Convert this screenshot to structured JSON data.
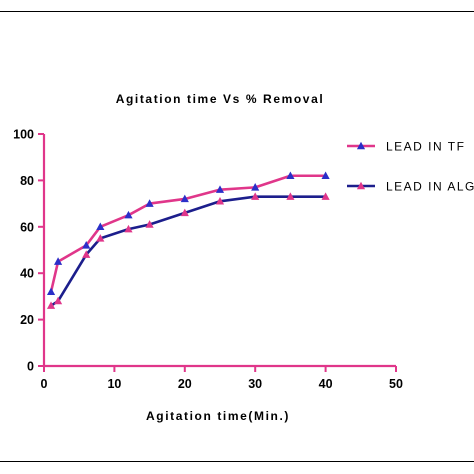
{
  "chart_data": {
    "type": "line",
    "title": "Agitation time Vs % Removal",
    "xlabel": "Agitation time(Min.)",
    "ylabel": "",
    "xlim": [
      0,
      50
    ],
    "ylim": [
      0,
      100
    ],
    "xticks": [
      0,
      10,
      20,
      30,
      40,
      50
    ],
    "yticks": [
      0,
      20,
      40,
      60,
      80,
      100
    ],
    "grid": false,
    "legend_position": "right",
    "series": [
      {
        "name": "LEAD IN TF",
        "line_color": "#e0368a",
        "marker_color": "#2b2fc8",
        "x": [
          1,
          2,
          6,
          8,
          12,
          15,
          20,
          25,
          30,
          35,
          40
        ],
        "y": [
          32,
          45,
          52,
          60,
          65,
          70,
          72,
          76,
          77,
          82,
          82
        ]
      },
      {
        "name": "LEAD IN ALG",
        "line_color": "#1c1e8c",
        "marker_color": "#e0368a",
        "x": [
          1,
          2,
          6,
          8,
          12,
          15,
          20,
          25,
          30,
          35,
          40
        ],
        "y": [
          26,
          28,
          48,
          55,
          59,
          61,
          66,
          71,
          73,
          73,
          73
        ]
      }
    ]
  },
  "colors": {
    "axis": "#e0368a",
    "text": "#000000"
  }
}
